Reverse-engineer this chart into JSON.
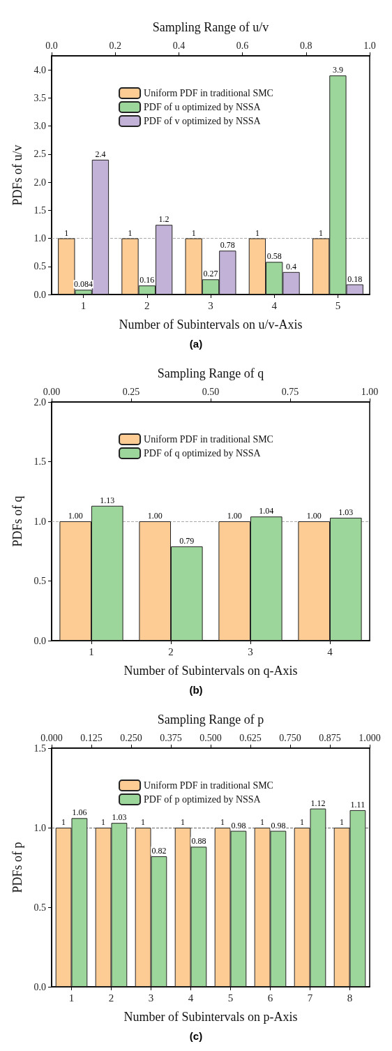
{
  "chart_data": [
    {
      "type": "bar",
      "xlabel": "Number of Subintervals on u/v-Axis",
      "ylabel": "PDFs of u/v",
      "x2label": "Sampling Range of u/v",
      "annotations": [
        "(a)"
      ],
      "legend": "top",
      "categories": [
        "1",
        "2",
        "3",
        "4",
        "5"
      ],
      "series": [
        {
          "name": "Uniform PDF in traditional SMC",
          "color": "#fdcb94",
          "values": [
            1,
            1,
            1,
            1,
            1
          ],
          "value_labels": [
            "1",
            "1",
            "1",
            "1",
            "1"
          ]
        },
        {
          "name": "PDF of u optimized by NSSA",
          "color": "#9dd69b",
          "values": [
            0.084,
            0.16,
            0.27,
            0.58,
            3.9
          ],
          "value_labels": [
            "0.084",
            "0.16",
            "0.27",
            "0.58",
            "3.9"
          ]
        },
        {
          "name": "PDF of v optimized by NSSA",
          "color": "#c3b2d8",
          "values": [
            2.4,
            1.24,
            0.78,
            0.4,
            0.18
          ],
          "value_labels": [
            "2.4",
            "1.2",
            "0.78",
            "0.4",
            "0.18"
          ]
        }
      ],
      "ylim": [
        0,
        4.25
      ],
      "yticks": [
        {
          "value": 0,
          "label": "0.0"
        },
        {
          "value": 0.5,
          "label": "0.5"
        },
        {
          "value": 1,
          "label": "1.0"
        },
        {
          "value": 1.5,
          "label": "1.5"
        },
        {
          "value": 2,
          "label": "2.0"
        },
        {
          "value": 2.5,
          "label": "2.5"
        },
        {
          "value": 3,
          "label": "3.0"
        },
        {
          "value": 3.5,
          "label": "3.5"
        },
        {
          "value": 4,
          "label": "4.0"
        }
      ],
      "x2lim": [
        0,
        1
      ],
      "x2ticks": [
        {
          "value": 0,
          "label": "0.0"
        },
        {
          "value": 0.2,
          "label": "0.2"
        },
        {
          "value": 0.4,
          "label": "0.4"
        },
        {
          "value": 0.6,
          "label": "0.6"
        },
        {
          "value": 0.8,
          "label": "0.8"
        },
        {
          "value": 1,
          "label": "1.0"
        }
      ],
      "ref_lines": [
        {
          "axis": "y",
          "value": 1,
          "color": "#aaaaaa",
          "line_style": "dashed"
        }
      ]
    },
    {
      "type": "bar",
      "xlabel": "Number of Subintervals on q-Axis",
      "ylabel": "PDFs of q",
      "x2label": "Sampling Range of q",
      "annotations": [
        "(b)"
      ],
      "legend": "top",
      "categories": [
        "1",
        "2",
        "3",
        "4"
      ],
      "series": [
        {
          "name": "Uniform PDF in traditional SMC",
          "color": "#fdcb94",
          "values": [
            1,
            1,
            1,
            1
          ],
          "value_labels": [
            "1.00",
            "1.00",
            "1.00",
            "1.00"
          ]
        },
        {
          "name": "PDF of q optimized by NSSA",
          "color": "#9dd69b",
          "values": [
            1.13,
            0.79,
            1.04,
            1.03
          ],
          "value_labels": [
            "1.13",
            "0.79",
            "1.04",
            "1.03"
          ]
        }
      ],
      "ylim": [
        0,
        2
      ],
      "yticks": [
        {
          "value": 0,
          "label": "0.0"
        },
        {
          "value": 0.5,
          "label": "0.5"
        },
        {
          "value": 1,
          "label": "1.0"
        },
        {
          "value": 1.5,
          "label": "1.5"
        },
        {
          "value": 2,
          "label": "2.0"
        }
      ],
      "x2lim": [
        0,
        1
      ],
      "x2ticks": [
        {
          "value": 0,
          "label": "0.00"
        },
        {
          "value": 0.25,
          "label": "0.25"
        },
        {
          "value": 0.5,
          "label": "0.50"
        },
        {
          "value": 0.75,
          "label": "0.75"
        },
        {
          "value": 1,
          "label": "1.00"
        }
      ],
      "ref_lines": [
        {
          "axis": "y",
          "value": 1,
          "color": "#aaaaaa",
          "line_style": "dashed"
        }
      ]
    },
    {
      "type": "bar",
      "xlabel": "Number of Subintervals on p-Axis",
      "ylabel": "PDFs of p",
      "x2label": "Sampling Range of p",
      "annotations": [
        "(c)"
      ],
      "legend": "top",
      "categories": [
        "1",
        "2",
        "3",
        "4",
        "5",
        "6",
        "7",
        "8"
      ],
      "series": [
        {
          "name": "Uniform PDF in traditional SMC",
          "color": "#fdcb94",
          "values": [
            1,
            1,
            1,
            1,
            1,
            1,
            1,
            1
          ],
          "value_labels": [
            "1",
            "1",
            "1",
            "1",
            "1",
            "1",
            "1",
            "1"
          ]
        },
        {
          "name": "PDF of p optimized by NSSA",
          "color": "#9dd69b",
          "values": [
            1.06,
            1.03,
            0.82,
            0.88,
            0.98,
            0.98,
            1.12,
            1.11
          ],
          "value_labels": [
            "1.06",
            "1.03",
            "0.82",
            "0.88",
            "0.98",
            "0.98",
            "1.12",
            "1.11"
          ]
        }
      ],
      "ylim": [
        0,
        1.5
      ],
      "yticks": [
        {
          "value": 0,
          "label": "0.0"
        },
        {
          "value": 0.5,
          "label": "0.5"
        },
        {
          "value": 1,
          "label": "1.0"
        },
        {
          "value": 1.5,
          "label": "1.5"
        }
      ],
      "x2lim": [
        0,
        1
      ],
      "x2ticks": [
        {
          "value": 0,
          "label": "0.000"
        },
        {
          "value": 0.125,
          "label": "0.125"
        },
        {
          "value": 0.25,
          "label": "0.250"
        },
        {
          "value": 0.375,
          "label": "0.375"
        },
        {
          "value": 0.5,
          "label": "0.500"
        },
        {
          "value": 0.625,
          "label": "0.625"
        },
        {
          "value": 0.75,
          "label": "0.750"
        },
        {
          "value": 0.875,
          "label": "0.875"
        },
        {
          "value": 1,
          "label": "1.000"
        }
      ],
      "ref_lines": [
        {
          "axis": "y",
          "value": 1,
          "color": "#666666",
          "line_style": "dashed"
        }
      ]
    }
  ]
}
